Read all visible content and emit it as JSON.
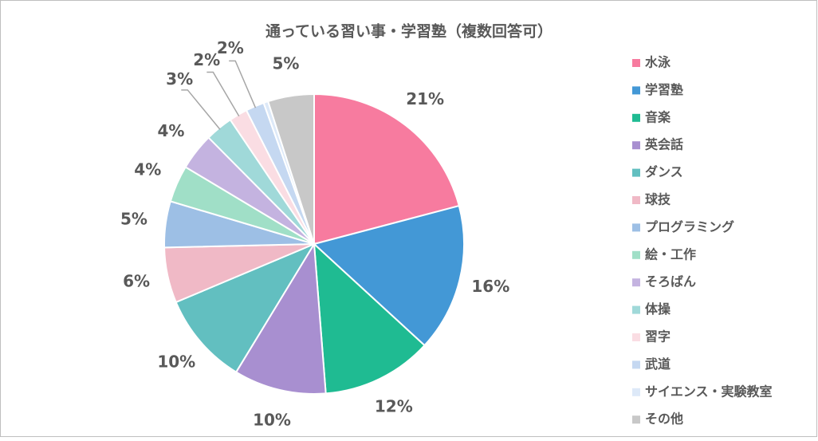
{
  "chart_data": {
    "type": "pie",
    "title": "通っている習い事・学習塾（複数回答可）",
    "categories": [
      "水泳",
      "学習塾",
      "音楽",
      "英会話",
      "ダンス",
      "球技",
      "プログラミング",
      "絵・工作",
      "そろばん",
      "体操",
      "習字",
      "武道",
      "サイエンス・実験教室",
      "その他"
    ],
    "values": [
      21,
      16,
      12,
      10,
      10,
      6,
      5,
      4,
      4,
      3,
      2,
      2,
      0.5,
      5
    ],
    "value_labels": [
      "21%",
      "16%",
      "12%",
      "10%",
      "10%",
      "6%",
      "5%",
      "4%",
      "4%",
      "3%",
      "2%",
      "2%",
      null,
      "5%"
    ],
    "colors": [
      "#f77b9f",
      "#4398d6",
      "#1fbb92",
      "#a88fd0",
      "#62bfc0",
      "#f0b9c6",
      "#9dbfe5",
      "#a0dfc7",
      "#c4b3e0",
      "#a0d9d9",
      "#fadde3",
      "#c5d8f1",
      "#dde9f8",
      "#c8c8c8"
    ],
    "legend": "right"
  }
}
